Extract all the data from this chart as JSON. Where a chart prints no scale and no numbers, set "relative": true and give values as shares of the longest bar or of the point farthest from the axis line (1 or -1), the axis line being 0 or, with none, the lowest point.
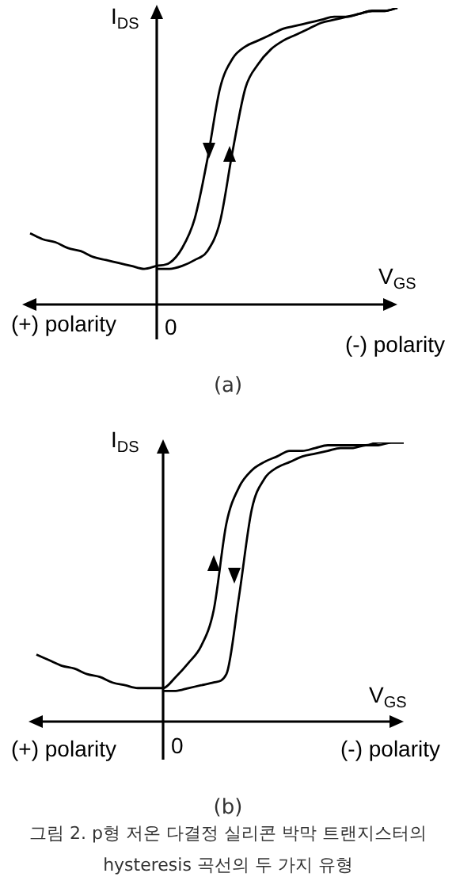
{
  "chart_data": [
    {
      "type": "line",
      "relative": true,
      "xlabel": "V$_{GS}$",
      "ylabel": "I$_{DS}$",
      "legend": false,
      "grid": false,
      "categories": [
        null,
        null,
        null,
        null,
        null,
        null,
        null,
        null,
        null,
        null,
        null,
        null,
        null,
        null,
        null,
        null,
        null,
        null,
        null,
        null,
        null,
        null,
        null,
        null,
        null,
        null,
        null,
        null,
        null,
        null
      ],
      "series": [
        {
          "color": "#000000",
          "values": [
            0.24,
            0.22,
            0.21,
            0.19,
            0.18,
            0.16,
            0.15,
            0.14,
            0.13,
            0.12,
            0.13,
            0.14,
            0.19,
            0.29,
            0.49,
            0.73,
            0.83,
            0.87,
            0.89,
            0.91,
            0.93,
            0.94,
            0.95,
            0.96,
            0.97,
            0.97,
            0.98,
            0.99,
            0.99,
            1
          ]
        },
        {
          "color": "#000000",
          "values": [
            null,
            null,
            null,
            null,
            null,
            null,
            null,
            null,
            null,
            null,
            0.12,
            0.12,
            0.13,
            0.15,
            0.18,
            0.28,
            0.52,
            0.73,
            0.81,
            0.86,
            0.89,
            0.91,
            0.93,
            0.95,
            0.96,
            0.97,
            0.98,
            0.99,
            0.99,
            1
          ]
        }
      ],
      "annotations": [
        "(+) polarity",
        "(-) polarity",
        "(a)",
        "0"
      ]
    },
    {
      "type": "line",
      "relative": true,
      "xlabel": "V$_{GS}$",
      "ylabel": "I$_{DS}$",
      "legend": false,
      "grid": false,
      "categories": [
        null,
        null,
        null,
        null,
        null,
        null,
        null,
        null,
        null,
        null,
        null,
        null,
        null,
        null,
        null,
        null,
        null,
        null,
        null,
        null,
        null,
        null,
        null,
        null,
        null,
        null,
        null,
        null,
        null,
        null
      ],
      "series": [
        {
          "color": "#000000",
          "values": [
            0.24,
            0.22,
            0.2,
            0.19,
            0.17,
            0.16,
            0.14,
            0.13,
            0.12,
            0.12,
            0.12,
            0.16,
            0.21,
            0.27,
            0.4,
            0.71,
            0.84,
            0.9,
            0.93,
            0.95,
            0.97,
            0.97,
            0.98,
            0.99,
            0.99,
            0.99,
            0.99,
            1,
            1,
            1
          ]
        },
        {
          "color": "#000000",
          "values": [
            null,
            null,
            null,
            null,
            null,
            null,
            null,
            null,
            null,
            null,
            0.11,
            0.11,
            0.12,
            0.13,
            0.14,
            0.17,
            0.45,
            0.76,
            0.87,
            0.91,
            0.93,
            0.95,
            0.96,
            0.97,
            0.98,
            0.98,
            0.99,
            0.99,
            1,
            1
          ]
        }
      ],
      "annotations": [
        "(+) polarity",
        "(-) polarity",
        "(b)",
        "그림 2. p형 저온 다결정 실리콘 박막 트랜지스터의 hysteresis 곡선의 두 가지 유형",
        "0"
      ]
    }
  ]
}
